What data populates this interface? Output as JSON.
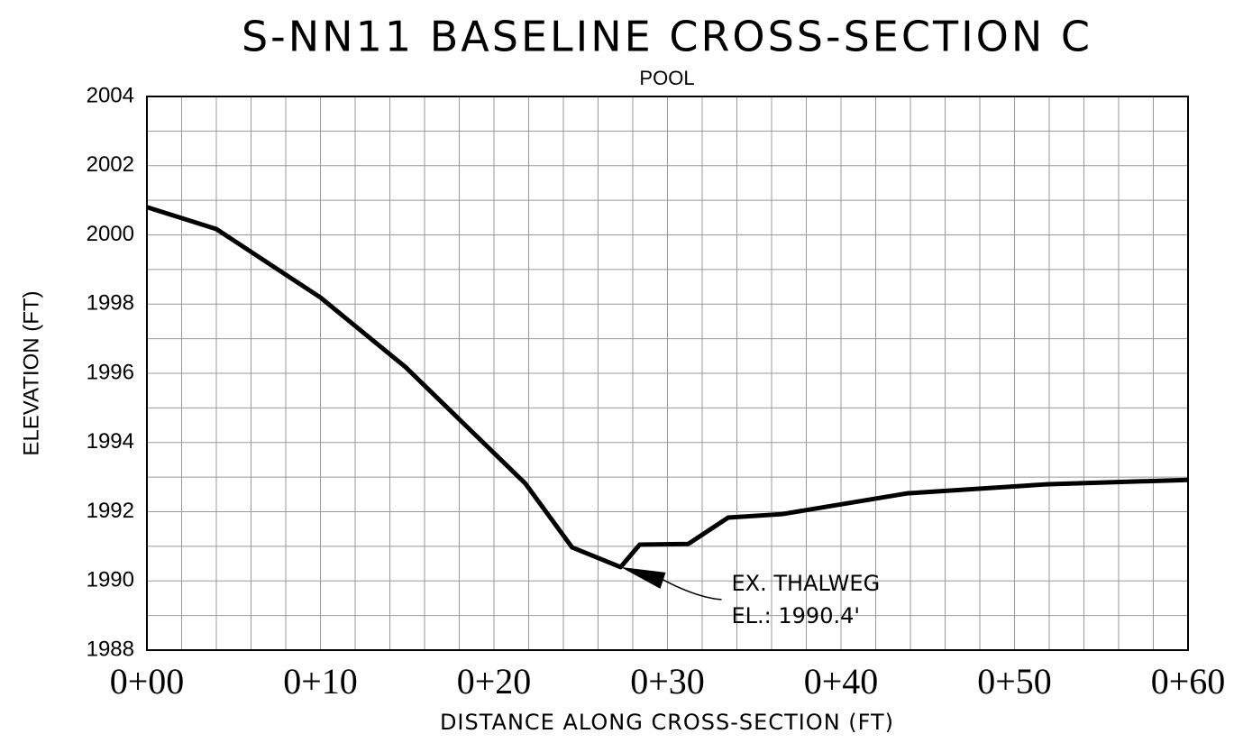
{
  "chart_data": {
    "type": "line",
    "title": "S-NN11 BASELINE CROSS-SECTION C",
    "subtitle": "POOL",
    "xlabel": "DISTANCE ALONG CROSS-SECTION (FT)",
    "ylabel": "ELEVATION (FT)",
    "x": [
      0,
      4,
      10,
      14.9,
      21.8,
      24.5,
      27.3,
      28.4,
      31.2,
      33.5,
      36.6,
      43.8,
      51.8,
      60
    ],
    "series": [
      {
        "name": "Baseline",
        "color": "#000000",
        "values": [
          2000.8,
          2000.17,
          1998.19,
          1996.18,
          1992.82,
          1990.97,
          1990.4,
          1991.05,
          1991.07,
          1991.83,
          1991.93,
          1992.53,
          1992.79,
          1992.92
        ]
      }
    ],
    "xlim": [
      0,
      60
    ],
    "ylim": [
      1988,
      2004
    ],
    "xticks": [
      {
        "value": 0,
        "label": "0+00"
      },
      {
        "value": 10,
        "label": "0+10"
      },
      {
        "value": 20,
        "label": "0+20"
      },
      {
        "value": 30,
        "label": "0+30"
      },
      {
        "value": 40,
        "label": "0+40"
      },
      {
        "value": 50,
        "label": "0+50"
      },
      {
        "value": 60,
        "label": "0+60"
      }
    ],
    "yticks": [
      1988,
      1990,
      1992,
      1994,
      1996,
      1998,
      2000,
      2002,
      2004
    ],
    "xgrid": [
      2,
      4,
      6,
      8,
      12,
      14,
      16,
      18,
      22,
      24,
      26,
      28,
      32,
      34,
      36,
      38,
      42,
      44,
      46,
      48,
      52,
      54,
      56,
      58
    ],
    "ygrid": [
      1989,
      1991,
      1993,
      1995,
      1997,
      1999,
      2001,
      2003
    ],
    "grid": true,
    "annotation": {
      "x": 27.3,
      "y": 1990.4,
      "lines": [
        "EX. THALWEG",
        "EL.: 1990.4'"
      ]
    }
  }
}
